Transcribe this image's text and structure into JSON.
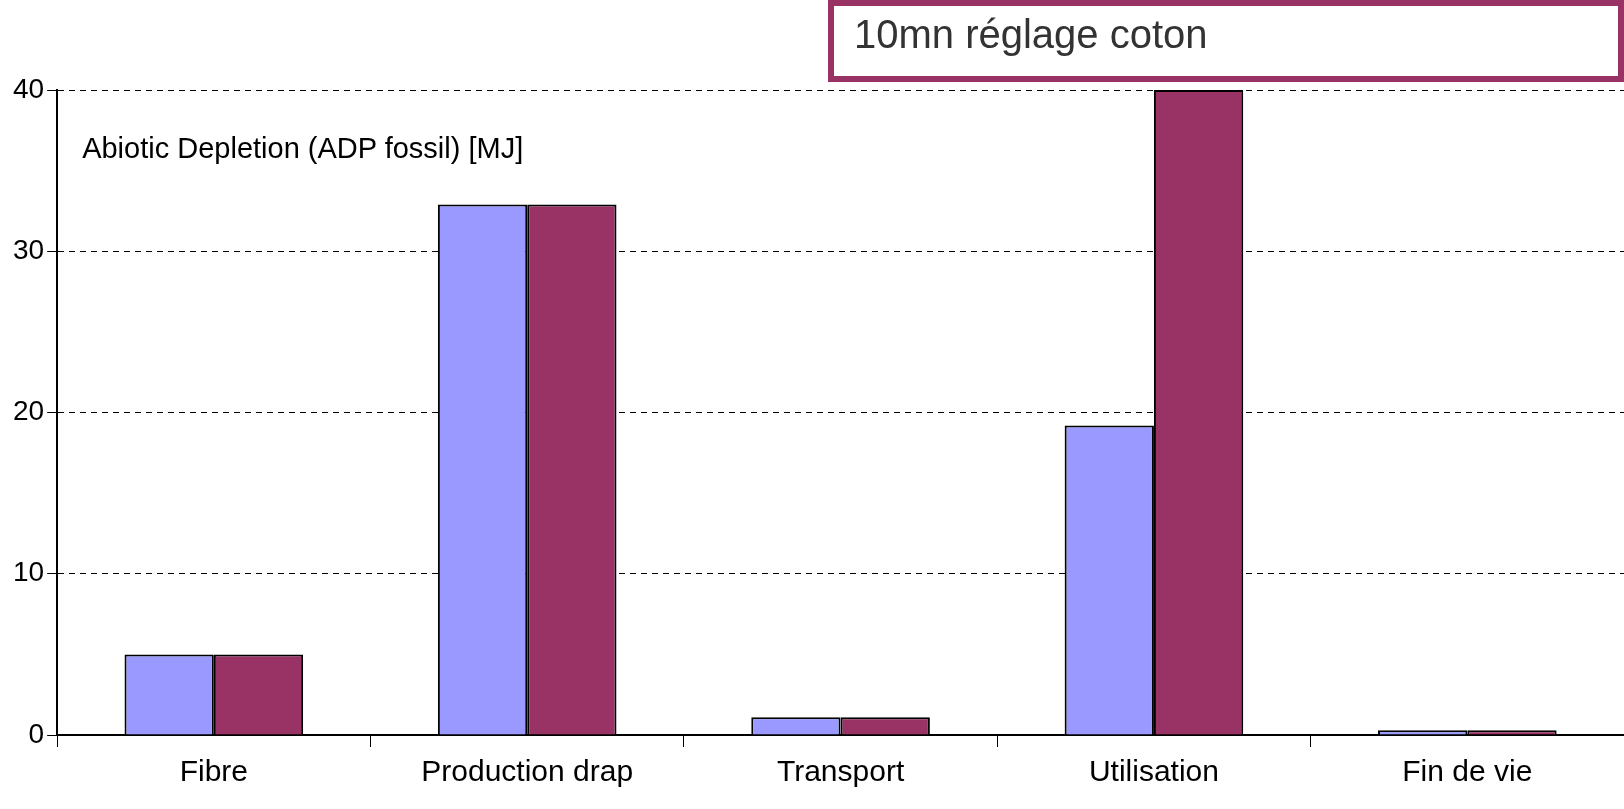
{
  "chart_data": {
    "type": "bar",
    "title": "Abiotic Depletion (ADP fossil) [MJ]",
    "categories": [
      "Fibre",
      "Production drap",
      "Transport",
      "Utilisation",
      "Fin de vie"
    ],
    "series": [
      {
        "color": "#9999ff",
        "values": [
          5,
          32.9,
          1.1,
          19.2,
          0.3
        ]
      },
      {
        "name": "10mn réglage coton",
        "color": "#993366",
        "values": [
          5,
          32.9,
          1.1,
          40,
          0.3
        ]
      }
    ],
    "ylim": [
      0,
      40
    ],
    "yticks": [
      0,
      10,
      20,
      30,
      40
    ],
    "grid": "y"
  }
}
